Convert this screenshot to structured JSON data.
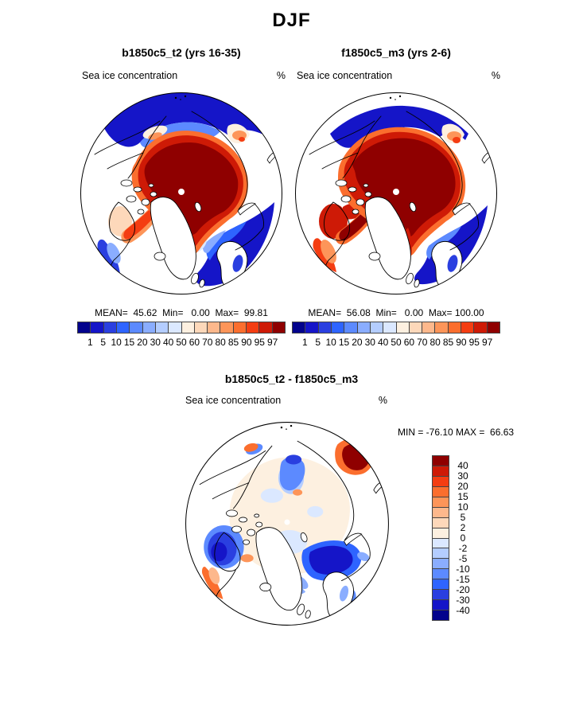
{
  "title": "DJF",
  "palette": [
    "#03038c",
    "#1515c8",
    "#2a3fe0",
    "#2e64ff",
    "#5c8aff",
    "#8aadff",
    "#b4cdff",
    "#dbe8ff",
    "#fdf0e0",
    "#fdd8ba",
    "#fdb88c",
    "#fd9559",
    "#fb6e2e",
    "#f43d12",
    "#ce1a06",
    "#8f0000"
  ],
  "panels": [
    {
      "title": "b1850c5_t2 (yrs 16-35)",
      "field_label": "Sea ice concentration",
      "units": "%",
      "stats": "MEAN=  45.62  Min=   0.00  Max=  99.81",
      "ticks": [
        1,
        5,
        10,
        15,
        20,
        30,
        40,
        50,
        60,
        70,
        80,
        85,
        90,
        95,
        97
      ]
    },
    {
      "title": "f1850c5_m3 (yrs 2-6)",
      "field_label": "Sea ice concentration",
      "units": "%",
      "stats": "MEAN=  56.08  Min=   0.00  Max= 100.00",
      "ticks": [
        1,
        5,
        10,
        15,
        20,
        30,
        40,
        50,
        60,
        70,
        80,
        85,
        90,
        95,
        97
      ]
    }
  ],
  "diff": {
    "title": "b1850c5_t2 - f1850c5_m3",
    "field_label": "Sea ice concentration",
    "units": "%",
    "minmax": "MIN = -76.10 MAX =  66.63",
    "ticks": [
      40,
      30,
      20,
      15,
      10,
      5,
      2,
      0,
      -2,
      -5,
      -10,
      -15,
      -20,
      -30,
      -40
    ]
  },
  "chart_data": [
    {
      "type": "heatmap",
      "projection": "north-polar-stereographic-map",
      "title": "b1850c5_t2 (yrs 16-35)",
      "variable": "Sea ice concentration",
      "units": "%",
      "season": "DJF",
      "mean": 45.62,
      "min": 0.0,
      "max": 99.81,
      "colorbar_levels": [
        1,
        5,
        10,
        15,
        20,
        30,
        40,
        50,
        60,
        70,
        80,
        85,
        90,
        95,
        97
      ],
      "colorbar_orientation": "horizontal",
      "colormap": "blue-to-red diverging, 16 classes"
    },
    {
      "type": "heatmap",
      "projection": "north-polar-stereographic-map",
      "title": "f1850c5_m3 (yrs 2-6)",
      "variable": "Sea ice concentration",
      "units": "%",
      "season": "DJF",
      "mean": 56.08,
      "min": 0.0,
      "max": 100.0,
      "colorbar_levels": [
        1,
        5,
        10,
        15,
        20,
        30,
        40,
        50,
        60,
        70,
        80,
        85,
        90,
        95,
        97
      ],
      "colorbar_orientation": "horizontal",
      "colormap": "blue-to-red diverging, 16 classes"
    },
    {
      "type": "heatmap",
      "projection": "north-polar-stereographic-map",
      "title": "b1850c5_t2 - f1850c5_m3",
      "variable": "Sea ice concentration difference",
      "units": "%",
      "season": "DJF",
      "min": -76.1,
      "max": 66.63,
      "colorbar_levels": [
        40,
        30,
        20,
        15,
        10,
        5,
        2,
        0,
        -2,
        -5,
        -10,
        -15,
        -20,
        -30,
        -40
      ],
      "colorbar_orientation": "vertical",
      "colormap": "blue-to-red diverging, 16 classes (red = positive, blue = negative)"
    }
  ]
}
